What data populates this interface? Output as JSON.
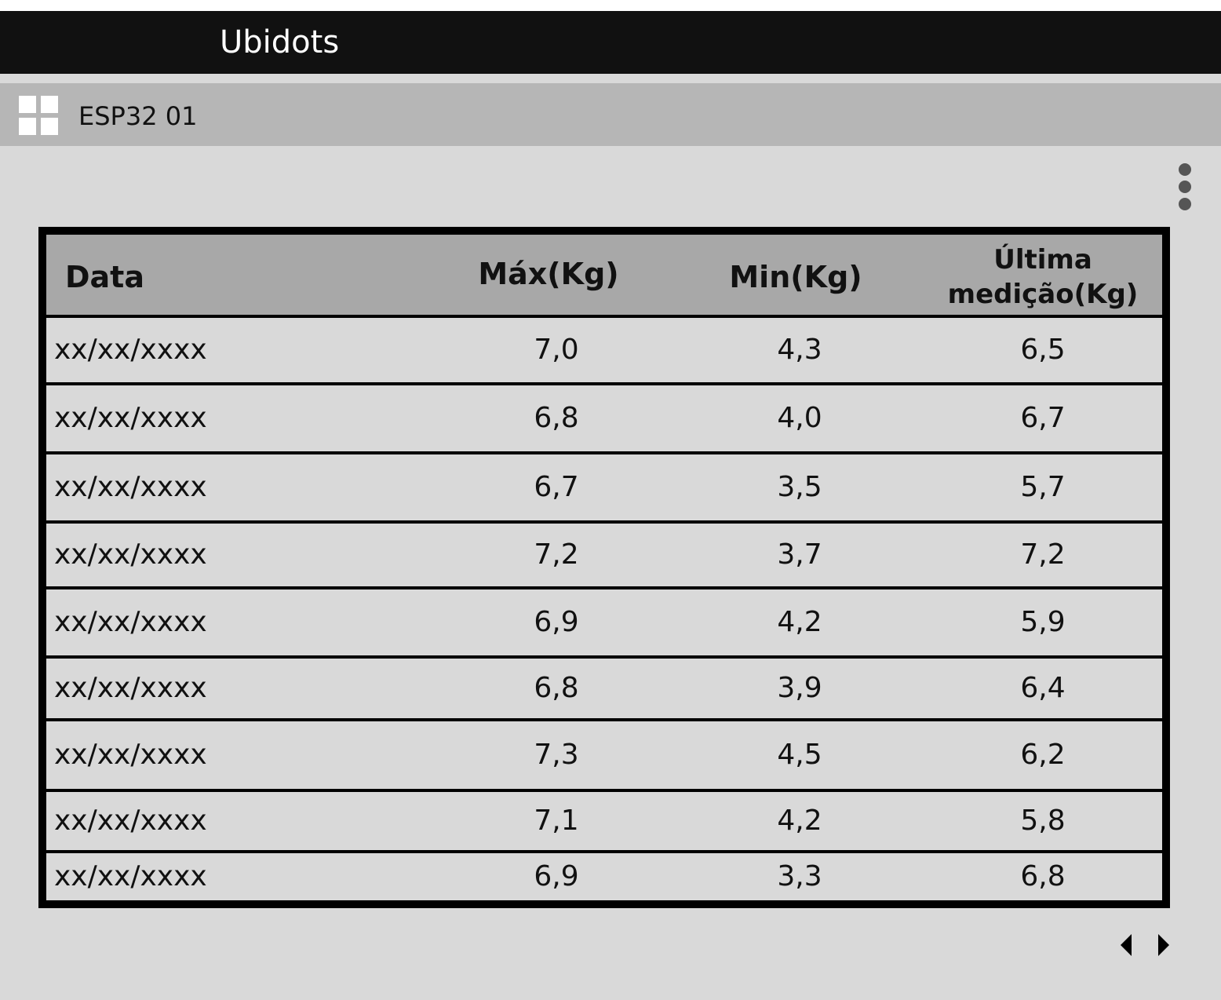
{
  "app": {
    "title": "Ubidots"
  },
  "device": {
    "name": "ESP32 01",
    "icon": "dashboard-grid-icon"
  },
  "toolbar": {
    "more_icon": "more-vertical-icon"
  },
  "table": {
    "headers": [
      "Data",
      "Máx(Kg)",
      "Min(Kg)",
      "Última medição(Kg)"
    ],
    "rows": [
      [
        "xx/xx/xxxx",
        "7,0",
        "4,3",
        "6,5"
      ],
      [
        "xx/xx/xxxx",
        "6,8",
        "4,0",
        "6,7"
      ],
      [
        "xx/xx/xxxx",
        "6,7",
        "3,5",
        "5,7"
      ],
      [
        "xx/xx/xxxx",
        "7,2",
        "3,7",
        "7,2"
      ],
      [
        "xx/xx/xxxx",
        "6,9",
        "4,2",
        "5,9"
      ],
      [
        "xx/xx/xxxx",
        "6,8",
        "3,9",
        "6,4"
      ],
      [
        "xx/xx/xxxx",
        "7,3",
        "4,5",
        "6,2"
      ],
      [
        "xx/xx/xxxx",
        "7,1",
        "4,2",
        "5,8"
      ],
      [
        "xx/xx/xxxx",
        "6,9",
        "3,3",
        "6,8"
      ]
    ]
  },
  "pagination": {
    "prev_icon": "caret-left-icon",
    "next_icon": "caret-right-icon"
  },
  "colors": {
    "topbar": "#111111",
    "device_bar": "#b6b6b6",
    "background": "#d9d9d9",
    "table_header": "#a8a8a8",
    "border": "#000000"
  }
}
